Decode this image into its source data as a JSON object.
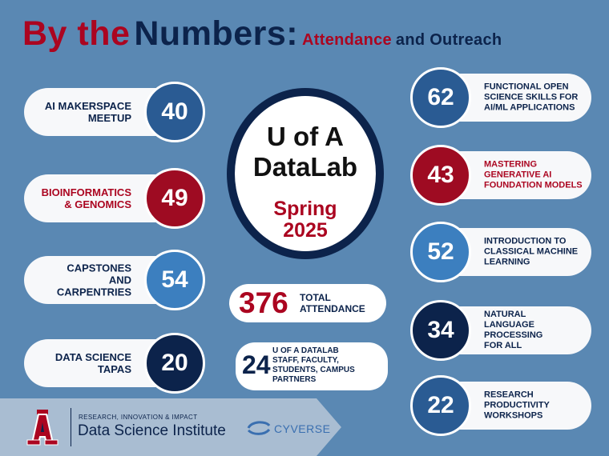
{
  "title": {
    "part1": "By the",
    "part2": "Numbers:",
    "part3": "Attendance",
    "part4": "and Outreach"
  },
  "center": {
    "line1": "U of A",
    "line2": "DataLab",
    "term1": "Spring",
    "term2": "2025"
  },
  "left_items": [
    {
      "label_lines": [
        "AI MAKERSPACE",
        "MEETUP"
      ],
      "value": "40"
    },
    {
      "label_lines": [
        "BIOINFORMATICS",
        "& GENOMICS"
      ],
      "value": "49"
    },
    {
      "label_lines": [
        "CAPSTONES",
        "AND",
        "CARPENTRIES"
      ],
      "value": "54"
    },
    {
      "label_lines": [
        "DATA SCIENCE",
        "TAPAS"
      ],
      "value": "20"
    }
  ],
  "right_items": [
    {
      "label_lines": [
        "FUNCTIONAL OPEN",
        "SCIENCE SKILLS FOR",
        "AI/ML APPLICATIONS"
      ],
      "value": "62"
    },
    {
      "label_lines": [
        "MASTERING",
        "GENERATIVE AI",
        "FOUNDATION MODELS"
      ],
      "value": "43"
    },
    {
      "label_lines": [
        "INTRODUCTION TO",
        "CLASSICAL MACHINE",
        "LEARNING"
      ],
      "value": "52"
    },
    {
      "label_lines": [
        "NATURAL",
        "LANGUAGE",
        "PROCESSING",
        "FOR ALL"
      ],
      "value": "34"
    },
    {
      "label_lines": [
        "RESEARCH",
        "PRODUCTIVITY",
        "WORKSHOPS"
      ],
      "value": "22"
    }
  ],
  "total": {
    "value": "376",
    "label_lines": [
      "TOTAL",
      "ATTENDANCE"
    ]
  },
  "staff": {
    "value": "24",
    "label_lines": [
      "U OF A DATALAB",
      "STAFF, FACULTY,",
      "STUDENTS, CAMPUS",
      "PARTNERS"
    ]
  },
  "footer": {
    "logo_letter": "A",
    "dsi_tagline": "RESEARCH, INNOVATION & IMPACT",
    "dsi_name": "Data Science Institute",
    "cyverse": "CYVERSE"
  },
  "colors": {
    "background": "#5a88b3",
    "red": "#ab0520",
    "navy": "#0c234b"
  }
}
